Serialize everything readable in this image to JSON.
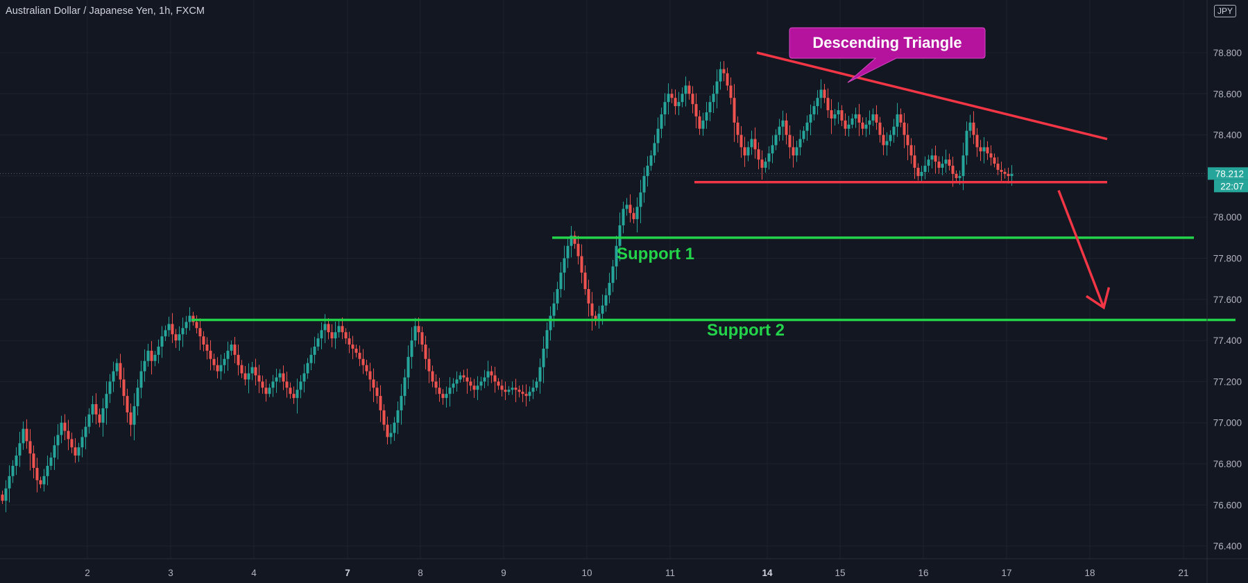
{
  "header": {
    "symbol_title": "Australian Dollar / Japanese Yen, 1h, FXCM",
    "currency_badge": "JPY"
  },
  "chart_data": {
    "type": "candlestick",
    "title": "Australian Dollar / Japanese Yen, 1h, FXCM",
    "instrument": "Australian Dollar / Japanese Yen",
    "timeframe": "1h",
    "source": "FXCM",
    "currency": "JPY",
    "y_axis": {
      "ticks": [
        76.4,
        76.6,
        76.8,
        77.0,
        77.2,
        77.4,
        77.6,
        77.8,
        78.0,
        78.2,
        78.4,
        78.6,
        78.8
      ],
      "tick_labels": [
        "76.400",
        "76.600",
        "76.800",
        "77.000",
        "77.200",
        "77.400",
        "77.600",
        "77.800",
        "78.000",
        "78.200",
        "78.400",
        "78.600",
        "78.800"
      ],
      "range": [
        76.3,
        78.98
      ]
    },
    "x_axis": {
      "ticks": [
        {
          "label": "2",
          "bar": 25
        },
        {
          "label": "3",
          "bar": 49
        },
        {
          "label": "4",
          "bar": 73
        },
        {
          "label": "7",
          "bar": 100
        },
        {
          "label": "8",
          "bar": 121
        },
        {
          "label": "9",
          "bar": 145
        },
        {
          "label": "10",
          "bar": 169
        },
        {
          "label": "11",
          "bar": 193
        },
        {
          "label": "14",
          "bar": 221
        },
        {
          "label": "15",
          "bar": 242
        },
        {
          "label": "16",
          "bar": 266
        },
        {
          "label": "17",
          "bar": 290
        },
        {
          "label": "18",
          "bar": 314
        },
        {
          "label": "21",
          "bar": 341
        }
      ],
      "bar_count_range": [
        0,
        348
      ]
    },
    "price_label": {
      "value": "78.212",
      "price": 78.212,
      "color": "#26a69a"
    },
    "countdown_label": {
      "value": "22:07",
      "color": "#26a69a"
    },
    "closes": [
      76.62,
      76.68,
      76.74,
      76.79,
      76.84,
      76.9,
      76.97,
      76.91,
      76.85,
      76.78,
      76.72,
      76.7,
      76.74,
      76.79,
      76.83,
      76.89,
      76.94,
      77.0,
      76.96,
      76.92,
      76.88,
      76.84,
      76.88,
      76.93,
      76.98,
      77.04,
      77.09,
      77.04,
      77.0,
      77.07,
      77.14,
      77.2,
      77.25,
      77.29,
      77.21,
      77.13,
      77.05,
      76.99,
      77.08,
      77.17,
      77.25,
      77.3,
      77.35,
      77.3,
      77.33,
      77.37,
      77.42,
      77.45,
      77.48,
      77.43,
      77.4,
      77.43,
      77.46,
      77.49,
      77.52,
      77.49,
      77.46,
      77.42,
      77.38,
      77.35,
      77.31,
      77.28,
      77.25,
      77.28,
      77.31,
      77.35,
      77.38,
      77.33,
      77.28,
      77.24,
      77.21,
      77.24,
      77.27,
      77.23,
      77.2,
      77.17,
      77.14,
      77.17,
      77.2,
      77.22,
      77.24,
      77.2,
      77.17,
      77.14,
      77.12,
      77.16,
      77.2,
      77.24,
      77.29,
      77.33,
      77.37,
      77.41,
      77.45,
      77.48,
      77.44,
      77.41,
      77.44,
      77.47,
      77.44,
      77.41,
      77.38,
      77.36,
      77.34,
      77.31,
      77.28,
      77.25,
      77.21,
      77.17,
      77.13,
      77.06,
      76.99,
      76.93,
      76.95,
      77.0,
      77.06,
      77.13,
      77.22,
      77.32,
      77.4,
      77.47,
      77.44,
      77.38,
      77.31,
      77.25,
      77.2,
      77.17,
      77.14,
      77.12,
      77.14,
      77.17,
      77.19,
      77.21,
      77.23,
      77.22,
      77.2,
      77.18,
      77.16,
      77.18,
      77.2,
      77.22,
      77.25,
      77.23,
      77.2,
      77.18,
      77.16,
      77.15,
      77.16,
      77.17,
      77.16,
      77.15,
      77.14,
      77.13,
      77.15,
      77.17,
      77.2,
      77.27,
      77.36,
      77.45,
      77.52,
      77.58,
      77.65,
      77.73,
      77.8,
      77.86,
      77.91,
      77.87,
      77.81,
      77.73,
      77.65,
      77.58,
      77.52,
      77.5,
      77.53,
      77.57,
      77.62,
      77.68,
      77.76,
      77.86,
      77.96,
      78.04,
      78.06,
      78.02,
      77.99,
      78.05,
      78.12,
      78.2,
      78.25,
      78.3,
      78.36,
      78.43,
      78.5,
      78.56,
      78.6,
      78.58,
      78.54,
      78.56,
      78.6,
      78.64,
      78.6,
      78.55,
      78.49,
      78.43,
      78.47,
      78.51,
      78.56,
      78.6,
      78.66,
      78.72,
      78.7,
      78.64,
      78.58,
      78.46,
      78.4,
      78.34,
      78.3,
      78.34,
      78.38,
      78.33,
      78.28,
      78.24,
      78.27,
      78.31,
      78.35,
      78.4,
      78.44,
      78.47,
      78.4,
      78.34,
      78.3,
      78.34,
      78.38,
      78.42,
      78.46,
      78.5,
      78.54,
      78.58,
      78.62,
      78.58,
      78.52,
      78.48,
      78.5,
      78.52,
      78.47,
      78.43,
      78.45,
      78.48,
      78.5,
      78.46,
      78.43,
      78.45,
      78.47,
      78.5,
      78.46,
      78.4,
      78.35,
      78.37,
      78.4,
      78.44,
      78.5,
      78.46,
      78.4,
      78.35,
      78.3,
      78.24,
      78.2,
      78.22,
      78.25,
      78.28,
      78.3,
      78.27,
      78.24,
      78.26,
      78.28,
      78.25,
      78.21,
      78.19,
      78.2,
      78.3,
      78.42,
      78.46,
      78.4,
      78.34,
      78.32,
      78.34,
      78.31,
      78.29,
      78.26,
      78.23,
      78.22,
      78.21,
      78.2,
      78.21
    ],
    "annotations": {
      "triangle_label": "Descending Triangle",
      "resistance_line": {
        "bar_from": 218,
        "price_from": 78.8,
        "bar_to": 319,
        "price_to": 78.38,
        "color": "#f23645"
      },
      "support_line": {
        "bar_from": 200,
        "price_from": 78.17,
        "bar_to": 319,
        "price_to": 78.17,
        "color": "#f23645"
      },
      "support_1": {
        "label": "Support 1",
        "price": 77.9,
        "bar_from": 159,
        "bar_to": 344,
        "color": "#23d44a"
      },
      "support_2": {
        "label": "Support 2",
        "price": 77.5,
        "bar_from": 55,
        "bar_to": 356,
        "color": "#23d44a"
      },
      "projection_arrow": {
        "bar_from": 305,
        "price_from": 78.13,
        "bar_to": 318,
        "price_to": 77.56,
        "color": "#f23645"
      }
    },
    "colors": {
      "background": "#131722",
      "grid": "#1e222d",
      "up_candle": "#26a69a",
      "down_candle": "#ef5350",
      "label_bubble": "#b5129e",
      "axis_text": "#b2b5be"
    }
  }
}
